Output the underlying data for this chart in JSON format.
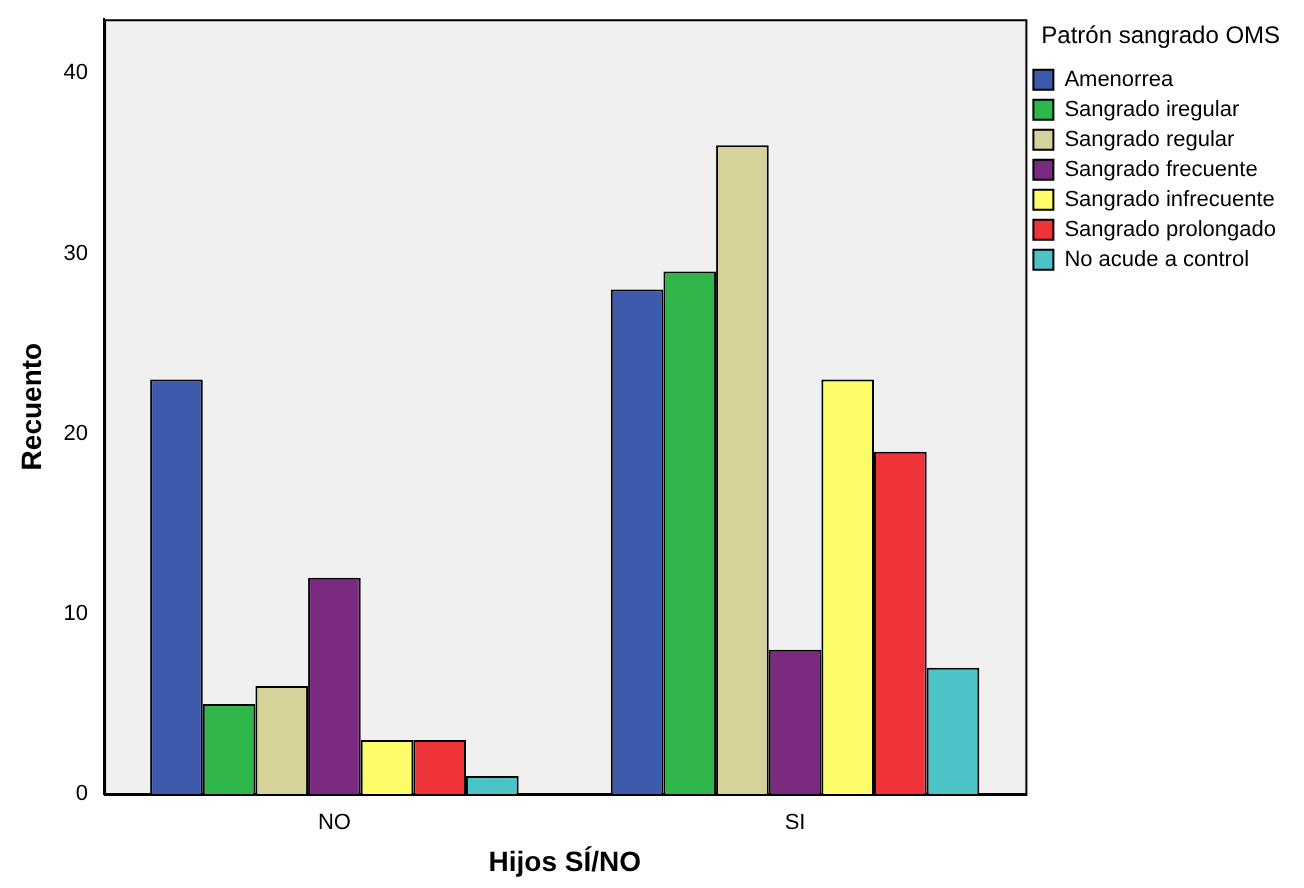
{
  "chart_data": {
    "type": "bar",
    "xlabel": "Hijos SÍ/NO",
    "ylabel": "Recuento",
    "legend_title": "Patrón sangrado OMS",
    "categories": [
      "NO",
      "SI"
    ],
    "series": [
      {
        "name": "Amenorrea",
        "color": "#3d5aad",
        "values": [
          23,
          28
        ]
      },
      {
        "name": "Sangrado iregular",
        "color": "#2fb64a",
        "values": [
          5,
          29
        ]
      },
      {
        "name": "Sangrado regular",
        "color": "#d6d39a",
        "values": [
          6,
          36
        ]
      },
      {
        "name": "Sangrado frecuente",
        "color": "#7b2b7f",
        "values": [
          12,
          8
        ]
      },
      {
        "name": "Sangrado infrecuente",
        "color": "#fdfd6a",
        "values": [
          3,
          23
        ]
      },
      {
        "name": "Sangrado prolongado",
        "color": "#ee3339",
        "values": [
          3,
          19
        ]
      },
      {
        "name": "No acude a control",
        "color": "#4cc3c7",
        "values": [
          1,
          7
        ]
      }
    ],
    "ylim": [
      0,
      43
    ],
    "yticks": [
      0,
      10,
      20,
      30,
      40
    ],
    "grid": false,
    "legend": "top right"
  }
}
